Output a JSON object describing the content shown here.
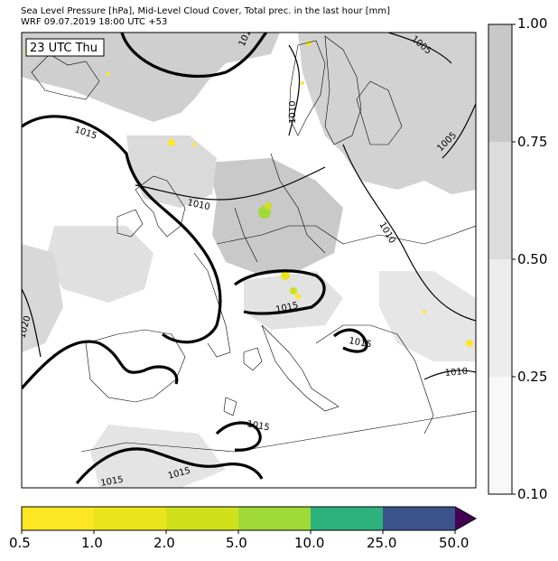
{
  "header": {
    "title_line1": "Sea Level Pressure [hPa], Mid-Level Cloud Cover, Total prec. in the last hour [mm]",
    "title_line2": "WRF 09.07.2019 18:00 UTC +53"
  },
  "map": {
    "time_label": "23 UTC Thu",
    "isobar_labels": [
      "1015",
      "1015",
      "1010",
      "1010",
      "1005",
      "1005",
      "1010",
      "1020",
      "1015",
      "1015",
      "1015",
      "1015",
      "1015",
      "1010"
    ]
  },
  "cloud_colorbar": {
    "ticks": [
      "1.00",
      "0.75",
      "0.50",
      "0.25",
      "0.10"
    ],
    "colors": [
      "#c8c8c8",
      "#dcdcdc",
      "#ececec",
      "#f8f8f8"
    ]
  },
  "precip_colorbar": {
    "ticks": [
      "0.5",
      "1.0",
      "2.0",
      "5.0",
      "10.0",
      "25.0",
      "50.0"
    ],
    "colors": [
      "#fde725",
      "#eae51a",
      "#d0e11c",
      "#a0da39",
      "#2db27d",
      "#3b528b",
      "#440154"
    ]
  }
}
